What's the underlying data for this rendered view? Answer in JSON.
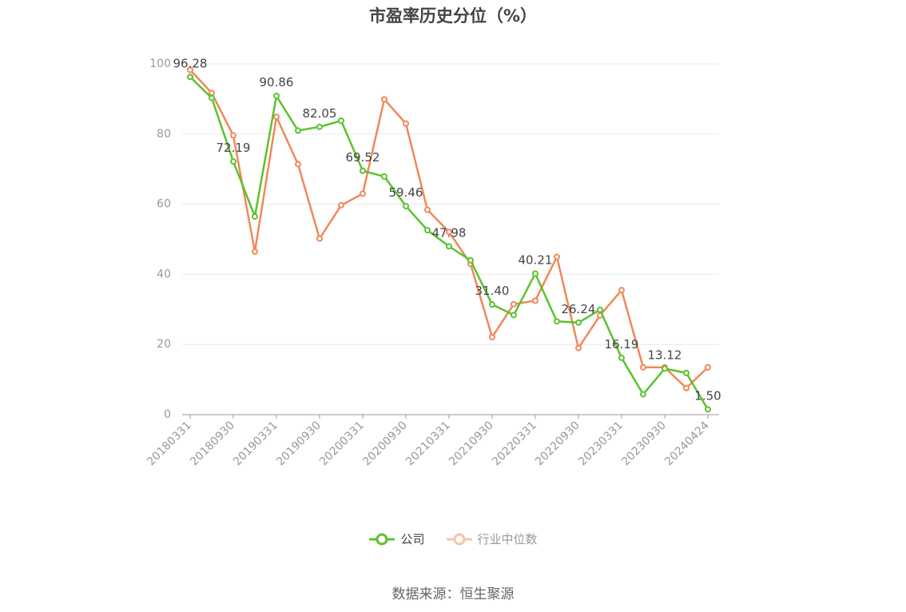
{
  "title": "市盈率历史分位（%）",
  "source": "数据来源：恒生聚源",
  "colors": {
    "company": "#5cc22f",
    "industry": "#f0885a",
    "grid": "#e6e9f0",
    "axis": "#999999"
  },
  "chart_data": {
    "type": "line",
    "title": "市盈率历史分位（%）",
    "ylim": [
      0,
      100
    ],
    "yticks": [
      "0",
      "20",
      "40",
      "60",
      "80",
      "100"
    ],
    "x_tick_labels": [
      "20180331",
      "20180930",
      "20190331",
      "20190930",
      "20200331",
      "20200930",
      "20210331",
      "20210930",
      "20220331",
      "20220930",
      "20230331",
      "20230930",
      "20240424"
    ],
    "x": [
      "20180331",
      "20180630",
      "20180930",
      "20181231",
      "20190331",
      "20190630",
      "20190930",
      "20191231",
      "20200331",
      "20200630",
      "20200930",
      "20201231",
      "20210331",
      "20210630",
      "20210930",
      "20211231",
      "20220331",
      "20220630",
      "20220930",
      "20221231",
      "20230331",
      "20230630",
      "20230930",
      "20231231",
      "20240424"
    ],
    "series": [
      {
        "name": "公司",
        "values": [
          96.28,
          90.3,
          72.19,
          56.5,
          90.86,
          81.0,
          82.05,
          83.8,
          69.52,
          67.9,
          59.46,
          52.6,
          47.98,
          44.0,
          31.4,
          28.4,
          40.21,
          26.6,
          26.24,
          29.9,
          16.19,
          5.8,
          13.12,
          11.9,
          1.5
        ],
        "labels": [
          "96.28",
          "",
          "72.19",
          "",
          "90.86",
          "",
          "82.05",
          "",
          "69.52",
          "",
          "59.46",
          "",
          "47.98",
          "",
          "31.40",
          "",
          "40.21",
          "",
          "26.24",
          "",
          "16.19",
          "",
          "13.12",
          "",
          "1.50"
        ]
      },
      {
        "name": "行业中位数",
        "values": [
          98.3,
          91.7,
          79.6,
          46.5,
          84.9,
          71.4,
          50.2,
          59.7,
          63.0,
          89.9,
          83.0,
          58.4,
          52.1,
          43.0,
          22.1,
          31.5,
          32.5,
          45.0,
          19.0,
          28.3,
          35.5,
          13.5,
          13.5,
          7.6,
          13.5
        ]
      }
    ],
    "legend": [
      "公司",
      "行业中位数"
    ],
    "legend_position": "bottom",
    "grid": true
  }
}
